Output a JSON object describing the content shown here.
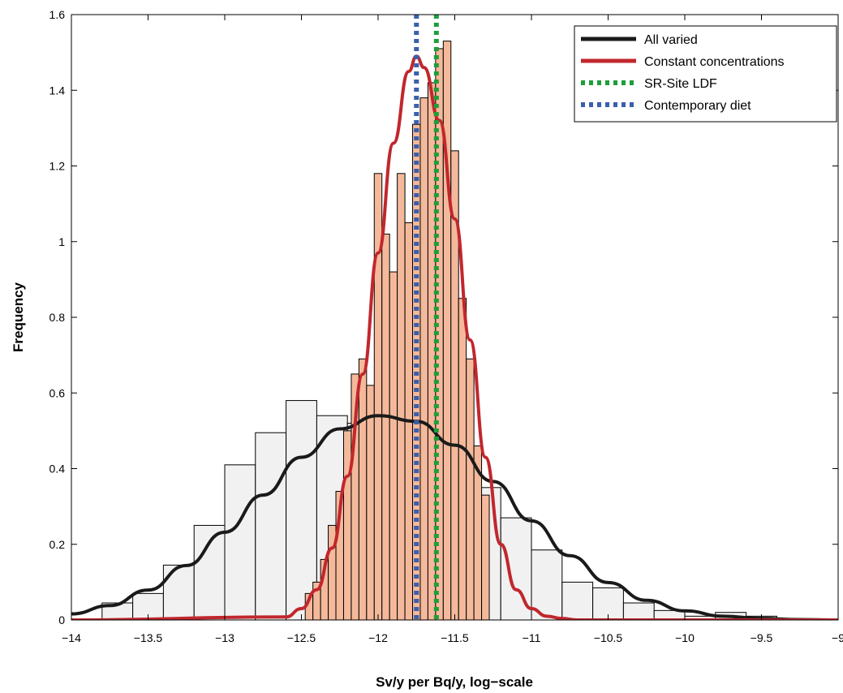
{
  "chart_data": {
    "type": "bar",
    "xlabel": "Sv/y per Bq/y, log−scale",
    "ylabel": "Frequency",
    "xlim": [
      -14,
      -9
    ],
    "ylim": [
      0,
      1.6
    ],
    "x_ticks": [
      "−14",
      "−13.5",
      "−13",
      "−12.5",
      "−12",
      "−11.5",
      "−11",
      "−10.5",
      "−10",
      "−9.5",
      "−9"
    ],
    "x_tick_values": [
      -14,
      -13.5,
      -13,
      -12.5,
      -12,
      -11.5,
      -11,
      -10.5,
      -10,
      -9.5,
      -9
    ],
    "y_ticks": [
      "0",
      "0.2",
      "0.4",
      "0.6",
      "0.8",
      "1",
      "1.2",
      "1.4",
      "1.6"
    ],
    "y_tick_values": [
      0,
      0.2,
      0.4,
      0.6,
      0.8,
      1.0,
      1.2,
      1.4,
      1.6
    ],
    "grid": false,
    "legend_position": "top-right",
    "histograms": [
      {
        "color": "#f1f1f1",
        "edges": [
          -13.8,
          -13.6,
          -13.4,
          -13.2,
          -13.0,
          -12.8,
          -12.6,
          -12.4,
          -12.2,
          -12.0,
          -11.8,
          -11.6,
          -11.4,
          -11.2,
          -11.0,
          -10.8,
          -10.6,
          -10.4,
          -10.2,
          -10.0,
          -9.8,
          -9.6,
          -9.4
        ],
        "values": [
          0.045,
          0.07,
          0.145,
          0.25,
          0.41,
          0.495,
          0.58,
          0.54,
          0.52,
          0.51,
          0.48,
          0.355,
          0.35,
          0.27,
          0.185,
          0.1,
          0.085,
          0.045,
          0.025,
          0.01,
          0.02,
          0.01
        ]
      },
      {
        "color": "#f4b99b",
        "edges": [
          -12.475,
          -12.425,
          -12.375,
          -12.325,
          -12.275,
          -12.225,
          -12.175,
          -12.125,
          -12.075,
          -12.025,
          -11.975,
          -11.925,
          -11.875,
          -11.825,
          -11.775,
          -11.725,
          -11.675,
          -11.625,
          -11.575,
          -11.525,
          -11.475,
          -11.425,
          -11.375,
          -11.325,
          -11.275
        ],
        "values": [
          0.07,
          0.1,
          0.16,
          0.25,
          0.34,
          0.5,
          0.65,
          0.69,
          0.62,
          1.18,
          1.02,
          0.92,
          1.18,
          1.05,
          1.31,
          1.38,
          1.42,
          1.51,
          1.53,
          1.24,
          0.85,
          0.69,
          0.46,
          0.33
        ]
      }
    ],
    "series": [
      {
        "name": "All varied",
        "type": "line",
        "color": "#1a1a1a",
        "x": [
          -14.0,
          -13.75,
          -13.5,
          -13.25,
          -13.0,
          -12.75,
          -12.5,
          -12.25,
          -12.0,
          -11.75,
          -11.5,
          -11.25,
          -11.0,
          -10.75,
          -10.5,
          -10.25,
          -10.0,
          -9.75,
          -9.5,
          -9.25,
          -9.0
        ],
        "y": [
          0.016,
          0.038,
          0.079,
          0.144,
          0.232,
          0.33,
          0.43,
          0.505,
          0.54,
          0.525,
          0.462,
          0.366,
          0.262,
          0.17,
          0.099,
          0.052,
          0.024,
          0.01,
          0.004,
          0.001,
          0.0
        ]
      },
      {
        "name": "Constant concentrations",
        "type": "line",
        "color": "#c1272d",
        "x": [
          -14.0,
          -12.6,
          -12.5,
          -12.4,
          -12.3,
          -12.2,
          -12.1,
          -12.0,
          -11.9,
          -11.8,
          -11.75,
          -11.7,
          -11.6,
          -11.5,
          -11.4,
          -11.3,
          -11.2,
          -11.1,
          -11.0,
          -10.9,
          -10.8,
          -10.7,
          -9.0
        ],
        "y": [
          0.0,
          0.008,
          0.03,
          0.08,
          0.19,
          0.38,
          0.65,
          0.97,
          1.26,
          1.45,
          1.49,
          1.46,
          1.32,
          1.06,
          0.74,
          0.43,
          0.2,
          0.08,
          0.03,
          0.01,
          0.004,
          0.0,
          0.0
        ]
      },
      {
        "name": "SR-Site LDF",
        "type": "vline",
        "color": "#1e9e3a",
        "x": -11.62
      },
      {
        "name": "Contemporary diet",
        "type": "vline",
        "color": "#3a5fad",
        "x": -11.75
      }
    ]
  }
}
